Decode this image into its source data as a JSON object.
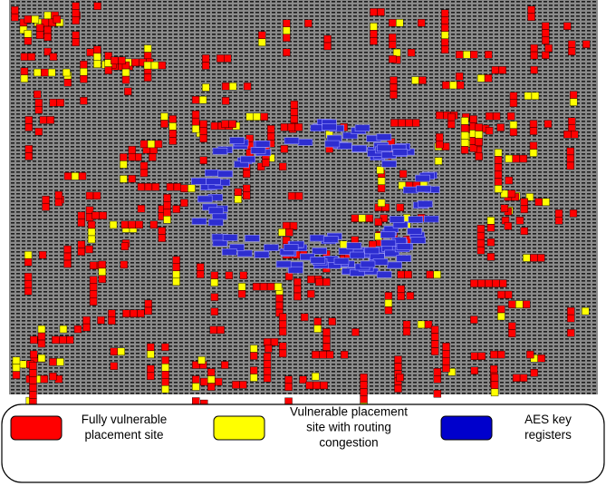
{
  "legend": {
    "items": [
      {
        "label_lines": [
          "Fully vulnerable",
          "placement site"
        ]
      },
      {
        "label_lines": [
          "Vulnerable placement",
          "site with routing",
          "congestion"
        ]
      },
      {
        "label_lines": [
          "AES key",
          "registers"
        ]
      }
    ]
  }
}
